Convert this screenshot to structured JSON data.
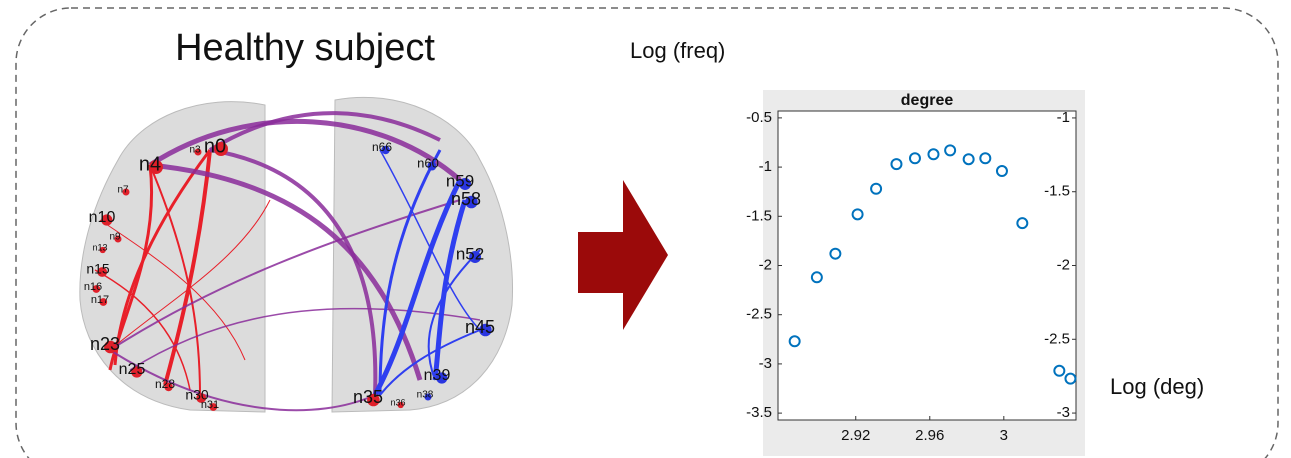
{
  "panel_title": "Healthy subject",
  "network": {
    "node_labels": [
      "n0",
      "n4",
      "n10",
      "n15",
      "n16",
      "n17",
      "n23",
      "n25",
      "n28",
      "n30",
      "n31",
      "n35",
      "n36",
      "n38",
      "n39",
      "n45",
      "n52",
      "n58",
      "n59",
      "n60",
      "n66",
      "n3",
      "n9",
      "n13",
      "n7"
    ]
  },
  "chart_data": {
    "type": "scatter",
    "title": "degree",
    "y_label": "Log (freq)",
    "x_label": "Log (deg)",
    "x": [
      2.887,
      2.899,
      2.909,
      2.921,
      2.931,
      2.942,
      2.952,
      2.962,
      2.971,
      2.981,
      2.99,
      2.999,
      3.01,
      3.03,
      3.036
    ],
    "values": [
      -2.77,
      -2.12,
      -1.88,
      -1.48,
      -1.22,
      -0.97,
      -0.91,
      -0.87,
      -0.83,
      -0.92,
      -0.91,
      -1.04,
      -1.57,
      -3.07,
      -3.15
    ],
    "color": "#0072bd",
    "xlim": [
      2.878,
      3.039
    ],
    "xticks": [
      2.92,
      2.96,
      3
    ],
    "ylim": [
      -3.57,
      -0.43
    ],
    "yticks": [
      -0.5,
      -1,
      -1.5,
      -2,
      -2.5,
      -3,
      -3.5
    ],
    "y2lim": [
      -3.047,
      -0.953
    ],
    "y2ticks": [
      -1,
      -1.5,
      -2,
      -2.5,
      -3
    ]
  }
}
